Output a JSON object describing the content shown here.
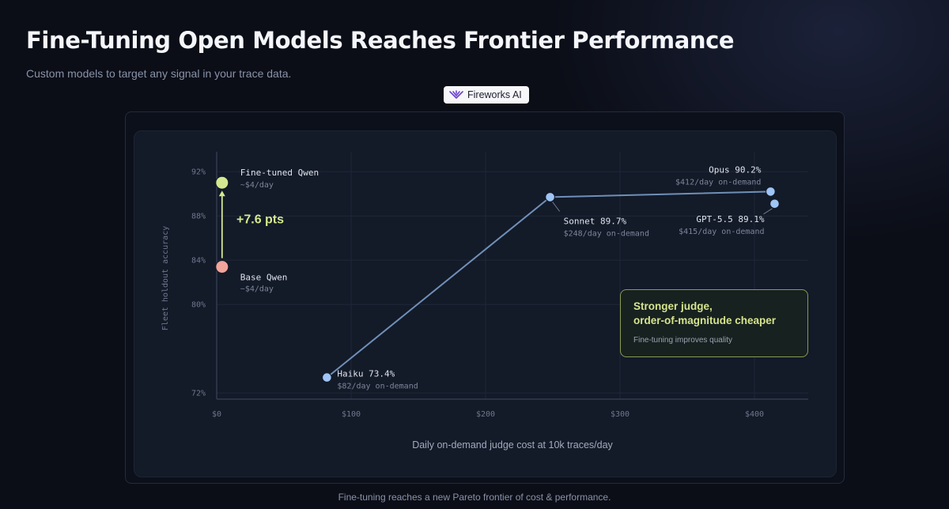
{
  "header": {
    "title": "Fine-Tuning Open Models Reaches Frontier Performance",
    "subtitle": "Custom models to target any signal in your trace data.",
    "brand_label": "Fireworks AI"
  },
  "chart_data": {
    "type": "scatter",
    "xlabel": "Daily on-demand judge cost at 10k traces/day",
    "ylabel": "Fleet holdout accuracy",
    "x_ticks": [
      "$0",
      "$100",
      "$200",
      "$300",
      "$400"
    ],
    "x_tick_values": [
      0,
      100,
      200,
      300,
      400
    ],
    "y_ticks": [
      "92%",
      "88%",
      "84%",
      "80%",
      "72%"
    ],
    "y_tick_values": [
      92,
      88,
      84,
      80,
      72
    ],
    "xlim": [
      0,
      440
    ],
    "points": [
      {
        "id": "haiku",
        "label": "Haiku 73.4%",
        "sublabel": "$82/day on-demand",
        "x": 82,
        "y": 73.4,
        "color": "#9ec5f5"
      },
      {
        "id": "sonnet",
        "label": "Sonnet 89.7%",
        "sublabel": "$248/day on-demand",
        "x": 248,
        "y": 89.7,
        "color": "#9ec5f5"
      },
      {
        "id": "opus",
        "label": "Opus 90.2%",
        "sublabel": "$412/day on-demand",
        "x": 412,
        "y": 90.2,
        "color": "#9ec5f5"
      },
      {
        "id": "gpt",
        "label": "GPT-5.5 89.1%",
        "sublabel": "$415/day on-demand",
        "x": 415,
        "y": 89.1,
        "color": "#9ec5f5"
      },
      {
        "id": "finetuned",
        "label": "Fine-tuned Qwen",
        "sublabel": "~$4/day",
        "x": 4,
        "y": 91.0,
        "color": "#d4e98f"
      },
      {
        "id": "base",
        "label": "Base Qwen",
        "sublabel": "~$4/day",
        "x": 4,
        "y": 83.4,
        "color": "#f3a49b"
      }
    ],
    "frontier_line": [
      "haiku",
      "sonnet",
      "opus"
    ],
    "improvement": {
      "label": "+7.6 pts",
      "from": "base",
      "to": "finetuned",
      "color": "#d4e98f"
    },
    "callout": {
      "title_line1": "Stronger judge,",
      "title_line2": "order-of-magnitude cheaper",
      "text": "Fine-tuning improves quality"
    },
    "grid": true
  },
  "footer": {
    "caption": "Fine-tuning reaches a new Pareto frontier of cost & performance."
  }
}
